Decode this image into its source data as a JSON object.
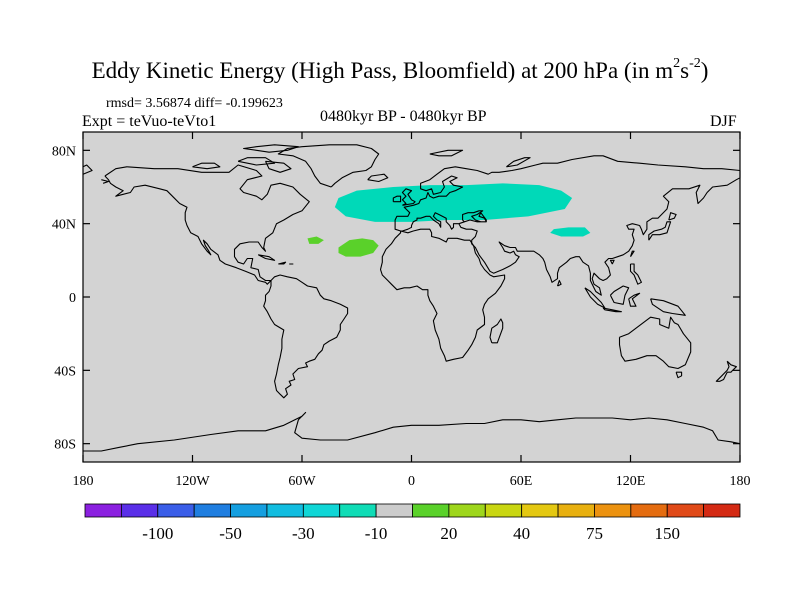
{
  "title": {
    "text": "Eddy Kinetic Energy (High Pass, Bloomfield) at 200 hPa (in m",
    "unit_sup1": "2",
    "unit_mid": "s",
    "unit_sup2": "-2",
    "unit_close": ")"
  },
  "stats": "rmsd= 3.56874 diff= -0.199623",
  "experiment": "Expt = teVuo-teVto1",
  "period": "0480kyr BP - 0480kyr BP",
  "season": "DJF",
  "map": {
    "projection": "equirectangular",
    "lon_range": [
      -180,
      180
    ],
    "lat_range": [
      -90,
      90
    ],
    "background_color": "#d3d3d3",
    "x_ticks": [
      {
        "lon": -180,
        "label": "180"
      },
      {
        "lon": -120,
        "label": "120W"
      },
      {
        "lon": -60,
        "label": "60W"
      },
      {
        "lon": 0,
        "label": "0"
      },
      {
        "lon": 60,
        "label": "60E"
      },
      {
        "lon": 120,
        "label": "120E"
      },
      {
        "lon": 180,
        "label": "180"
      }
    ],
    "y_ticks": [
      {
        "lat": 80,
        "label": "80N"
      },
      {
        "lat": 40,
        "label": "40N"
      },
      {
        "lat": 0,
        "label": "0"
      },
      {
        "lat": -40,
        "label": "40S"
      },
      {
        "lat": -80,
        "label": "80S"
      }
    ],
    "anomaly_regions": [
      {
        "name": "Northern Eurasia negative",
        "color": "#00d9b8",
        "polygon": [
          [
            -40,
            54
          ],
          [
            -30,
            58
          ],
          [
            -10,
            60
          ],
          [
            10,
            61
          ],
          [
            30,
            61
          ],
          [
            50,
            62
          ],
          [
            70,
            61
          ],
          [
            82,
            58
          ],
          [
            88,
            54
          ],
          [
            84,
            48
          ],
          [
            64,
            44
          ],
          [
            40,
            42
          ],
          [
            20,
            42
          ],
          [
            0,
            41
          ],
          [
            -20,
            41
          ],
          [
            -36,
            44
          ],
          [
            -42,
            49
          ]
        ]
      },
      {
        "name": "Central Asia negative",
        "color": "#00d9b8",
        "polygon": [
          [
            78,
            37
          ],
          [
            86,
            38
          ],
          [
            95,
            38
          ],
          [
            98,
            35
          ],
          [
            94,
            33
          ],
          [
            82,
            33
          ],
          [
            76,
            35
          ]
        ]
      },
      {
        "name": "Subtropical Atlantic positive",
        "color": "#5ad12a",
        "polygon": [
          [
            -40,
            27
          ],
          [
            -34,
            31
          ],
          [
            -27,
            32
          ],
          [
            -21,
            31
          ],
          [
            -18,
            28
          ],
          [
            -21,
            24
          ],
          [
            -28,
            22
          ],
          [
            -36,
            22
          ],
          [
            -40,
            24
          ]
        ]
      },
      {
        "name": "Western Atlantic positive",
        "color": "#5ad12a",
        "polygon": [
          [
            -57,
            32
          ],
          [
            -52,
            33
          ],
          [
            -48,
            31
          ],
          [
            -51,
            29
          ],
          [
            -56,
            29
          ]
        ]
      }
    ]
  },
  "colorbar": {
    "colors": [
      "#8b20e0",
      "#5a2fe8",
      "#3a5ee8",
      "#1f7ee0",
      "#159fe0",
      "#12bde0",
      "#10d6d6",
      "#10dcb6",
      "#cccccc",
      "#5ad12a",
      "#9ed61c",
      "#c9d612",
      "#e4c812",
      "#e8b010",
      "#ec9210",
      "#e46c10",
      "#e04a18",
      "#d42a14"
    ],
    "labels": [
      "-100",
      "-50",
      "-30",
      "-10",
      "20",
      "40",
      "75",
      "150"
    ]
  }
}
